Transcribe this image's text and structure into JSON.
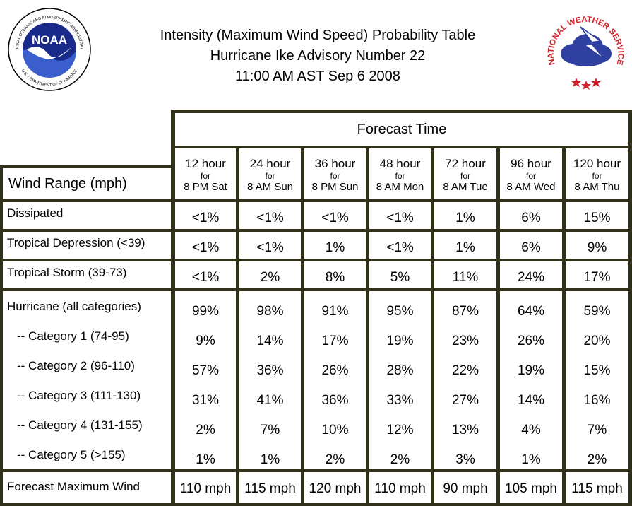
{
  "title": {
    "line1": "Intensity (Maximum Wind Speed) Probability Table",
    "line2": "Hurricane Ike Advisory Number 22",
    "line3": "11:00 AM AST Sep 6 2008"
  },
  "logos": {
    "noaa": {
      "text": "NOAA",
      "ring_text": "NATIONAL OCEANIC AND ATMOSPHERIC ADMINISTRATION",
      "ring_text_bottom": "U.S. DEPARTMENT OF COMMERCE",
      "colors": {
        "ring": "#ffffff",
        "sky": "#1a2a8a",
        "water": "#3a5fcd",
        "bird": "#ffffff"
      }
    },
    "nws": {
      "ring_text": "NATIONAL WEATHER SERVICE",
      "colors": {
        "text": "#d0202a",
        "cloud": "#3040a0",
        "bolt": "#ffffff",
        "stars": "#d0202a"
      }
    }
  },
  "table": {
    "forecast_time_label": "Forecast Time",
    "wind_range_label": "Wind Range (mph)",
    "columns": [
      {
        "hours": "12 hour",
        "for": "for",
        "when": "8 PM Sat"
      },
      {
        "hours": "24 hour",
        "for": "for",
        "when": "8 AM Sun"
      },
      {
        "hours": "36 hour",
        "for": "for",
        "when": "8 PM Sun"
      },
      {
        "hours": "48 hour",
        "for": "for",
        "when": "8 AM Mon"
      },
      {
        "hours": "72 hour",
        "for": "for",
        "when": "8 AM Tue"
      },
      {
        "hours": "96 hour",
        "for": "for",
        "when": "8 AM Wed"
      },
      {
        "hours": "120 hour",
        "for": "for",
        "when": "8 AM Thu"
      }
    ],
    "rows": [
      {
        "label": "Dissipated",
        "values": [
          "<1%",
          "<1%",
          "<1%",
          "<1%",
          "1%",
          "6%",
          "15%"
        ]
      },
      {
        "label": "Tropical Depression (<39)",
        "values": [
          "<1%",
          "<1%",
          "1%",
          "<1%",
          "1%",
          "6%",
          "9%"
        ]
      },
      {
        "label": "Tropical Storm (39-73)",
        "values": [
          "<1%",
          "2%",
          "8%",
          "5%",
          "11%",
          "24%",
          "17%"
        ]
      }
    ],
    "hurricane_group": [
      {
        "label": "Hurricane (all categories)",
        "values": [
          "99%",
          "98%",
          "91%",
          "95%",
          "87%",
          "64%",
          "59%"
        ]
      },
      {
        "label": "-- Category 1 (74-95)",
        "values": [
          "9%",
          "14%",
          "17%",
          "19%",
          "23%",
          "26%",
          "20%"
        ]
      },
      {
        "label": "-- Category 2 (96-110)",
        "values": [
          "57%",
          "36%",
          "26%",
          "28%",
          "22%",
          "19%",
          "15%"
        ]
      },
      {
        "label": "-- Category 3 (111-130)",
        "values": [
          "31%",
          "41%",
          "36%",
          "33%",
          "27%",
          "14%",
          "16%"
        ]
      },
      {
        "label": "-- Category 4 (131-155)",
        "values": [
          "2%",
          "7%",
          "10%",
          "12%",
          "13%",
          "4%",
          "7%"
        ]
      },
      {
        "label": "-- Category 5 (>155)",
        "values": [
          "1%",
          "1%",
          "2%",
          "2%",
          "3%",
          "1%",
          "2%"
        ]
      }
    ],
    "max_wind": {
      "label": "Forecast Maximum Wind",
      "values": [
        "110 mph",
        "115 mph",
        "120 mph",
        "110 mph",
        "90 mph",
        "105 mph",
        "115 mph"
      ]
    },
    "border_color": "#2f2f1a"
  }
}
